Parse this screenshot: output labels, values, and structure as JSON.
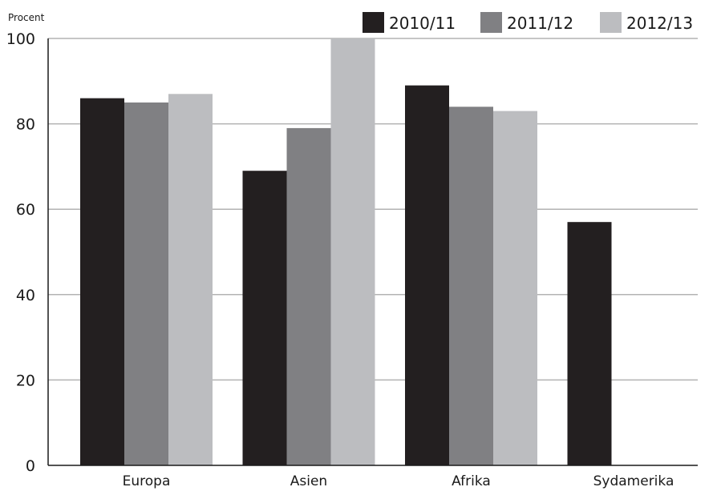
{
  "chart_data": {
    "type": "bar",
    "ylabel": "Procent",
    "ylim": [
      0,
      100
    ],
    "yticks": [
      "0",
      "20",
      "40",
      "60",
      "80",
      "100"
    ],
    "categories": [
      "Europa",
      "Asien",
      "Afrika",
      "Sydamerika"
    ],
    "series": [
      {
        "name": "2010/11",
        "color": "#231f20",
        "values": [
          86,
          69,
          89,
          57
        ]
      },
      {
        "name": "2011/12",
        "color": "#808083",
        "values": [
          85,
          79,
          84,
          null
        ]
      },
      {
        "name": "2012/13",
        "color": "#bcbdc0",
        "values": [
          87,
          100,
          83,
          null
        ]
      }
    ],
    "grid": true,
    "legend_position": "top-right"
  }
}
